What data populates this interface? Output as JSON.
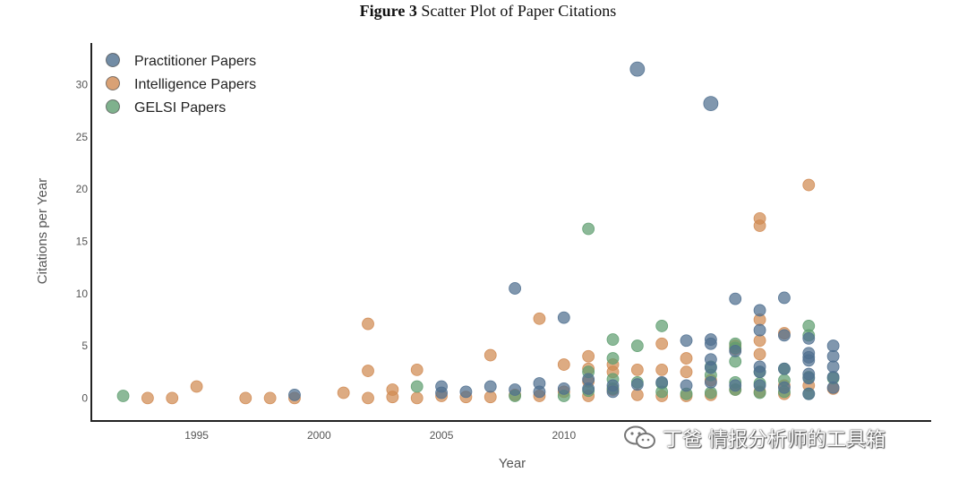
{
  "figure": {
    "label": "Figure 3",
    "caption": "Scatter Plot of Paper Citations"
  },
  "watermark": {
    "text": "丁爸 情报分析师的工具箱",
    "icon": "wechat-icon"
  },
  "chart_data": {
    "type": "scatter",
    "title": "Figure 3 Scatter Plot of Paper Citations",
    "xlabel": "Year",
    "ylabel": "Citations per Year",
    "xlim": [
      1990.7,
      2025
    ],
    "ylim": [
      -2.2,
      34
    ],
    "xticks": [
      1995,
      2000,
      2005,
      2010
    ],
    "yticks": [
      0,
      5,
      10,
      15,
      20,
      25,
      30
    ],
    "grid": false,
    "legend_position": "top-left",
    "series": [
      {
        "name": "Practitioner Papers",
        "color": "#4f6f8f",
        "points": [
          [
            1999,
            0.3
          ],
          [
            2005,
            1.1
          ],
          [
            2005,
            0.5
          ],
          [
            2006,
            0.6
          ],
          [
            2007,
            1.1
          ],
          [
            2008,
            10.5
          ],
          [
            2008,
            0.8
          ],
          [
            2009,
            1.4
          ],
          [
            2009,
            0.6
          ],
          [
            2010,
            7.7
          ],
          [
            2010,
            0.9
          ],
          [
            2011,
            1.8
          ],
          [
            2011,
            0.9
          ],
          [
            2012,
            1.2
          ],
          [
            2012,
            0.6
          ],
          [
            2013,
            31.5
          ],
          [
            2013,
            1.3
          ],
          [
            2014,
            1.5
          ],
          [
            2015,
            5.5
          ],
          [
            2015,
            1.2
          ],
          [
            2016,
            28.2
          ],
          [
            2016,
            5.6
          ],
          [
            2016,
            5.2
          ],
          [
            2016,
            3.7
          ],
          [
            2016,
            2.9
          ],
          [
            2016,
            1.5
          ],
          [
            2017,
            9.5
          ],
          [
            2017,
            4.5
          ],
          [
            2017,
            1.2
          ],
          [
            2018,
            8.4
          ],
          [
            2018,
            6.5
          ],
          [
            2018,
            3.0
          ],
          [
            2018,
            2.5
          ],
          [
            2018,
            1.2
          ],
          [
            2019,
            9.6
          ],
          [
            2019,
            6.0
          ],
          [
            2019,
            2.8
          ],
          [
            2019,
            1.0
          ],
          [
            2020,
            5.7
          ],
          [
            2020,
            4.3
          ],
          [
            2020,
            3.9
          ],
          [
            2020,
            3.6
          ],
          [
            2020,
            2.3
          ],
          [
            2020,
            1.9
          ],
          [
            2020,
            0.4
          ],
          [
            2021,
            5.0
          ],
          [
            2021,
            4.0
          ],
          [
            2021,
            3.0
          ],
          [
            2021,
            2.0
          ],
          [
            2021,
            1.0
          ]
        ]
      },
      {
        "name": "Intelligence Papers",
        "color": "#d08a52",
        "points": [
          [
            1993,
            0.0
          ],
          [
            1994,
            0.0
          ],
          [
            1995,
            1.1
          ],
          [
            1997,
            0.0
          ],
          [
            1998,
            0.0
          ],
          [
            1999,
            0.0
          ],
          [
            2001,
            0.5
          ],
          [
            2002,
            7.1
          ],
          [
            2002,
            2.6
          ],
          [
            2002,
            0.0
          ],
          [
            2003,
            0.8
          ],
          [
            2003,
            0.1
          ],
          [
            2004,
            2.7
          ],
          [
            2004,
            0.0
          ],
          [
            2005,
            0.2
          ],
          [
            2006,
            0.1
          ],
          [
            2007,
            4.1
          ],
          [
            2007,
            0.1
          ],
          [
            2008,
            0.3
          ],
          [
            2009,
            7.6
          ],
          [
            2009,
            0.2
          ],
          [
            2010,
            3.2
          ],
          [
            2010,
            0.6
          ],
          [
            2011,
            4.0
          ],
          [
            2011,
            2.8
          ],
          [
            2011,
            1.6
          ],
          [
            2011,
            0.2
          ],
          [
            2012,
            3.2
          ],
          [
            2012,
            2.5
          ],
          [
            2012,
            0.8
          ],
          [
            2013,
            2.7
          ],
          [
            2013,
            0.3
          ],
          [
            2014,
            5.2
          ],
          [
            2014,
            2.7
          ],
          [
            2014,
            0.2
          ],
          [
            2015,
            3.8
          ],
          [
            2015,
            2.5
          ],
          [
            2015,
            0.2
          ],
          [
            2016,
            1.7
          ],
          [
            2016,
            0.3
          ],
          [
            2017,
            5.0
          ],
          [
            2017,
            4.7
          ],
          [
            2017,
            0.8
          ],
          [
            2018,
            17.2
          ],
          [
            2018,
            16.5
          ],
          [
            2018,
            7.5
          ],
          [
            2018,
            5.5
          ],
          [
            2018,
            4.2
          ],
          [
            2018,
            0.6
          ],
          [
            2019,
            6.2
          ],
          [
            2019,
            1.2
          ],
          [
            2019,
            0.4
          ],
          [
            2020,
            20.4
          ],
          [
            2020,
            1.2
          ],
          [
            2021,
            0.9
          ]
        ]
      },
      {
        "name": "GELSI Papers",
        "color": "#5f9e70",
        "points": [
          [
            1992,
            0.2
          ],
          [
            2004,
            1.1
          ],
          [
            2008,
            0.2
          ],
          [
            2010,
            0.2
          ],
          [
            2011,
            16.2
          ],
          [
            2011,
            2.5
          ],
          [
            2011,
            0.7
          ],
          [
            2012,
            5.6
          ],
          [
            2012,
            3.8
          ],
          [
            2012,
            1.8
          ],
          [
            2012,
            0.9
          ],
          [
            2013,
            5.0
          ],
          [
            2013,
            1.5
          ],
          [
            2014,
            6.9
          ],
          [
            2014,
            1.4
          ],
          [
            2014,
            0.6
          ],
          [
            2015,
            0.4
          ],
          [
            2016,
            3.0
          ],
          [
            2016,
            2.2
          ],
          [
            2016,
            0.5
          ],
          [
            2017,
            5.2
          ],
          [
            2017,
            4.8
          ],
          [
            2017,
            3.5
          ],
          [
            2017,
            1.5
          ],
          [
            2017,
            0.8
          ],
          [
            2018,
            2.5
          ],
          [
            2018,
            1.4
          ],
          [
            2018,
            0.5
          ],
          [
            2019,
            2.8
          ],
          [
            2019,
            1.7
          ],
          [
            2019,
            0.6
          ],
          [
            2020,
            6.9
          ],
          [
            2020,
            6.0
          ],
          [
            2020,
            2.0
          ],
          [
            2020,
            0.4
          ],
          [
            2021,
            1.9
          ]
        ]
      }
    ]
  }
}
